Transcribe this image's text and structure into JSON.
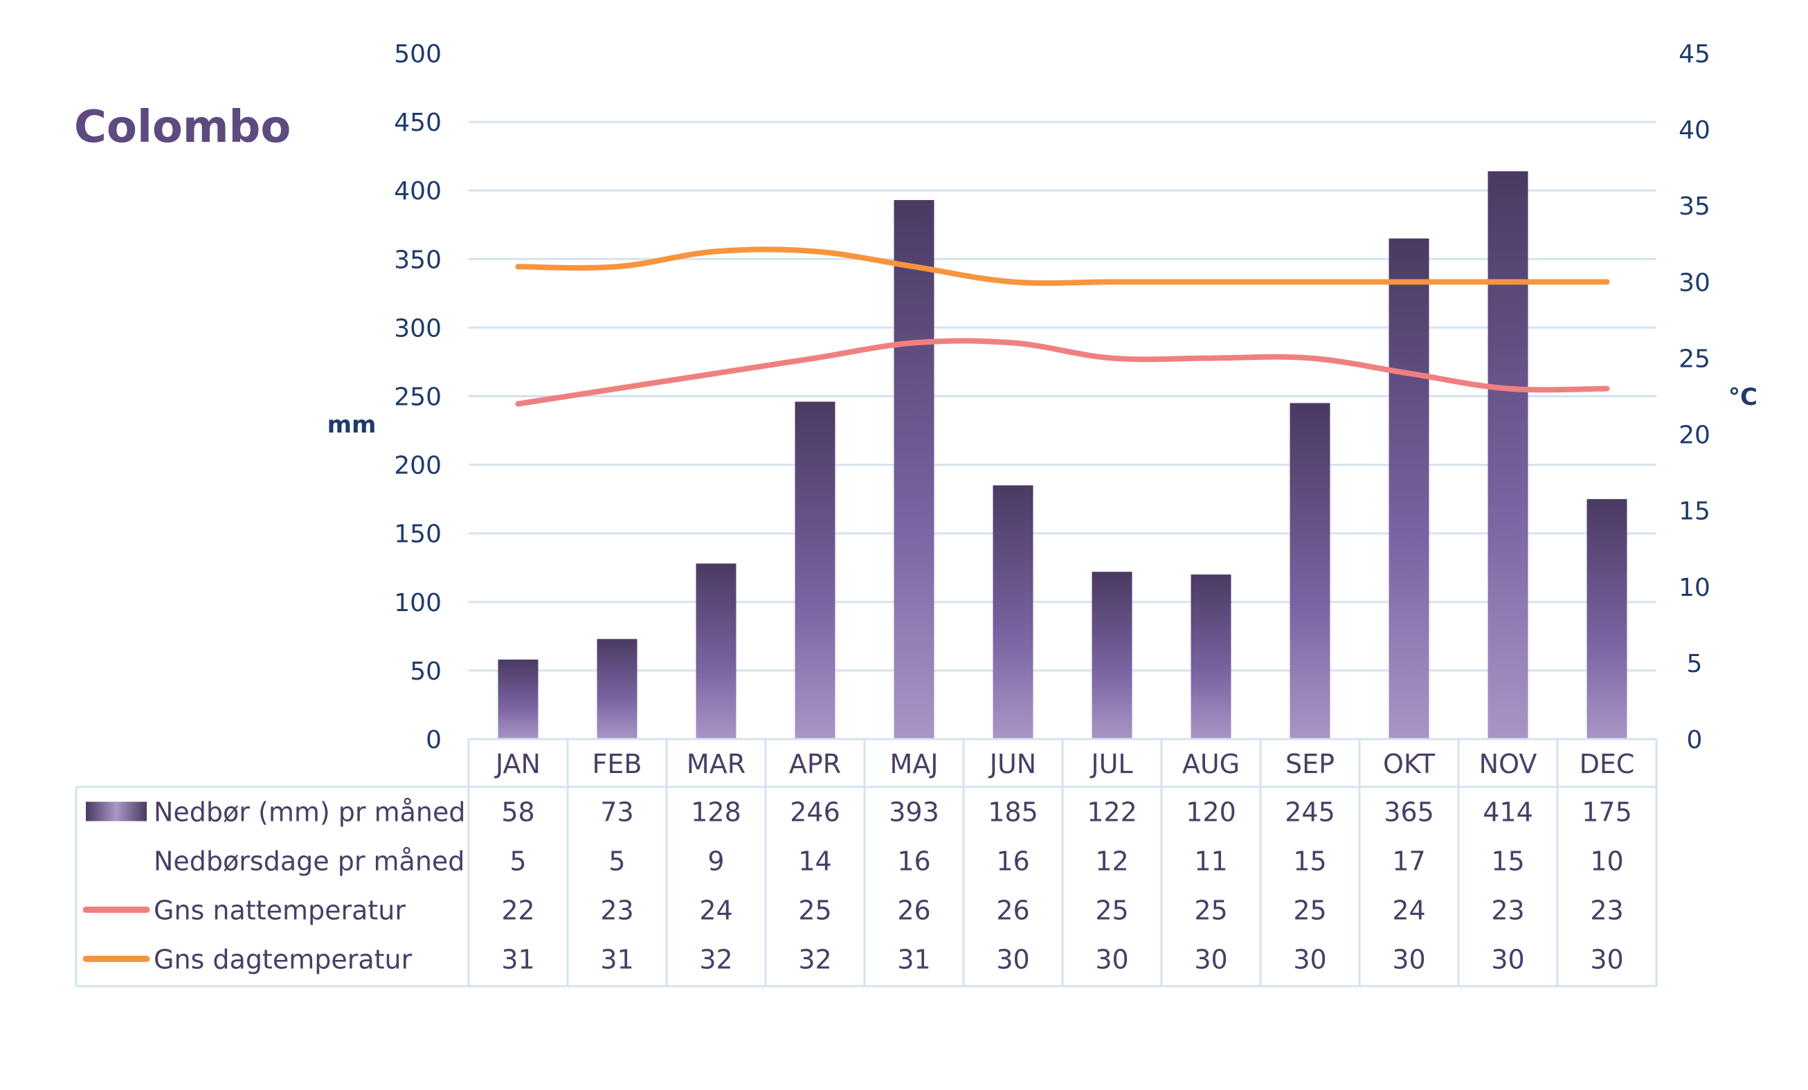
{
  "chart_data": {
    "type": "bar",
    "title": "Colombo",
    "ylabel": "mm",
    "y2label": "°C",
    "ylim": [
      0,
      500
    ],
    "y2lim": [
      0,
      45
    ],
    "yticks": [
      0,
      50,
      100,
      150,
      200,
      250,
      300,
      350,
      400,
      450,
      500
    ],
    "y2ticks": [
      0,
      5,
      10,
      15,
      20,
      25,
      30,
      35,
      40,
      45
    ],
    "grid": true,
    "categories": [
      "JAN",
      "FEB",
      "MAR",
      "APR",
      "MAJ",
      "JUN",
      "JUL",
      "AUG",
      "SEP",
      "OKT",
      "NOV",
      "DEC"
    ],
    "series": [
      {
        "name": "Nedbør (mm) pr måned",
        "type": "bar",
        "axis": "left",
        "values": [
          58,
          73,
          128,
          246,
          393,
          185,
          122,
          120,
          245,
          365,
          414,
          175
        ],
        "color_top": "#4a3a62",
        "color_bottom": "#a996c6"
      },
      {
        "name": "Nedbørsdage pr måned",
        "type": "table-only",
        "values": [
          5,
          5,
          9,
          14,
          16,
          16,
          12,
          11,
          15,
          17,
          15,
          10
        ]
      },
      {
        "name": "Gns nattemperatur",
        "type": "line",
        "axis": "right",
        "values": [
          22,
          23,
          24,
          25,
          26,
          26,
          25,
          25,
          25,
          24,
          23,
          23
        ],
        "color": "#f08080"
      },
      {
        "name": "Gns dagtemperatur",
        "type": "line",
        "axis": "right",
        "values": [
          31,
          31,
          32,
          32,
          31,
          30,
          30,
          30,
          30,
          30,
          30,
          30
        ],
        "color": "#f7953e"
      }
    ],
    "data_table": true,
    "colors": {
      "grid": "#d6e2f0",
      "axis_text": "#1f3b6b",
      "category_text": "#4a3d66",
      "title": "#5e4a7e"
    }
  }
}
